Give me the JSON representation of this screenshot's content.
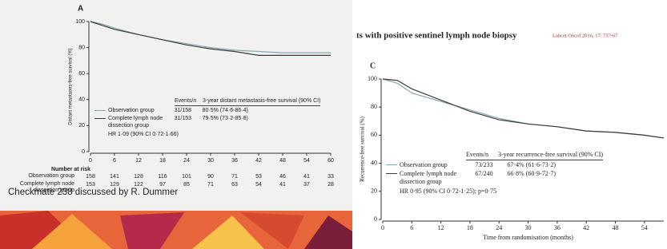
{
  "slide": {
    "footer": "Checkmate 238 discussed by R. Dummer",
    "title_fragment": "ts with positive sentinel lymph node biopsy",
    "citation": "Lancet Oncol 2016; 17: 757-67"
  },
  "chart_data": [
    {
      "type": "line",
      "panel": "A",
      "y_label": "Distant metastases-free survival (%)",
      "x": [
        0,
        3,
        6,
        12,
        18,
        24,
        30,
        36,
        42,
        48,
        54,
        60
      ],
      "xlim": [
        0,
        60
      ],
      "xticks": [
        0,
        6,
        12,
        18,
        24,
        30,
        36,
        42,
        48,
        54,
        60
      ],
      "ylim": [
        0,
        100
      ],
      "yticks": [
        0,
        20,
        40,
        60,
        80,
        100
      ],
      "legend_header": [
        "Events/n",
        "3-year distant metastasis-free survival (90% CI)"
      ],
      "series": [
        {
          "name": "Observation group",
          "color": "#86a9b0",
          "events": "31/158",
          "ci": "80·5% (74·6-86·4)",
          "values": [
            100,
            98,
            95,
            90,
            86,
            83,
            80,
            78,
            77,
            76,
            76,
            76
          ]
        },
        {
          "name": "Complete lymph node dissection group",
          "color": "#3a3a3a",
          "events": "31/153",
          "ci": "79·5% (73·2-85·8)",
          "values": [
            100,
            97,
            94,
            90,
            86,
            82,
            79,
            77,
            74,
            74,
            74,
            74
          ]
        }
      ],
      "note": "HR 1·09 (90% CI 0·72-1·66)",
      "risk_table": {
        "title": "Number at risk",
        "rows": [
          {
            "name": "Observation group",
            "values": [
              158,
              141,
              128,
              116,
              101,
              90,
              71,
              53,
              46,
              41,
              33
            ]
          },
          {
            "name": "Complete lymph node dissection group",
            "values": [
              153,
              129,
              122,
              97,
              85,
              71,
              63,
              54,
              41,
              37,
              28
            ]
          }
        ]
      }
    },
    {
      "type": "line",
      "panel": "C",
      "y_label": "Recurrence-free survival (%)",
      "x_label": "Time from randomisation (months)",
      "x": [
        0,
        3,
        6,
        12,
        18,
        24,
        30,
        36,
        42,
        48,
        54,
        58
      ],
      "xlim": [
        0,
        58
      ],
      "xticks": [
        0,
        6,
        12,
        18,
        24,
        30,
        36,
        42,
        48,
        54
      ],
      "ylim": [
        0,
        100
      ],
      "yticks": [
        0,
        20,
        40,
        60,
        80,
        100
      ],
      "legend_header": [
        "Events/n",
        "3-year recurrence-free survival (90% CI)"
      ],
      "series": [
        {
          "name": "Observation group",
          "color": "#86a9b0",
          "events": "73/233",
          "ci": "67·4% (61·6-73·2)",
          "values": [
            100,
            97,
            90,
            84,
            78,
            72,
            68,
            66,
            63,
            62,
            60,
            58
          ]
        },
        {
          "name": "Complete lymph node dissection group",
          "color": "#3a3a3a",
          "events": "67/240",
          "ci": "66·8% (60·9-72·7)",
          "values": [
            100,
            99,
            93,
            85,
            77,
            71,
            68,
            66,
            63,
            62,
            60,
            58
          ]
        }
      ],
      "note": "HR 0·95 (90% CI 0·72-1·25); p=0·75"
    }
  ]
}
